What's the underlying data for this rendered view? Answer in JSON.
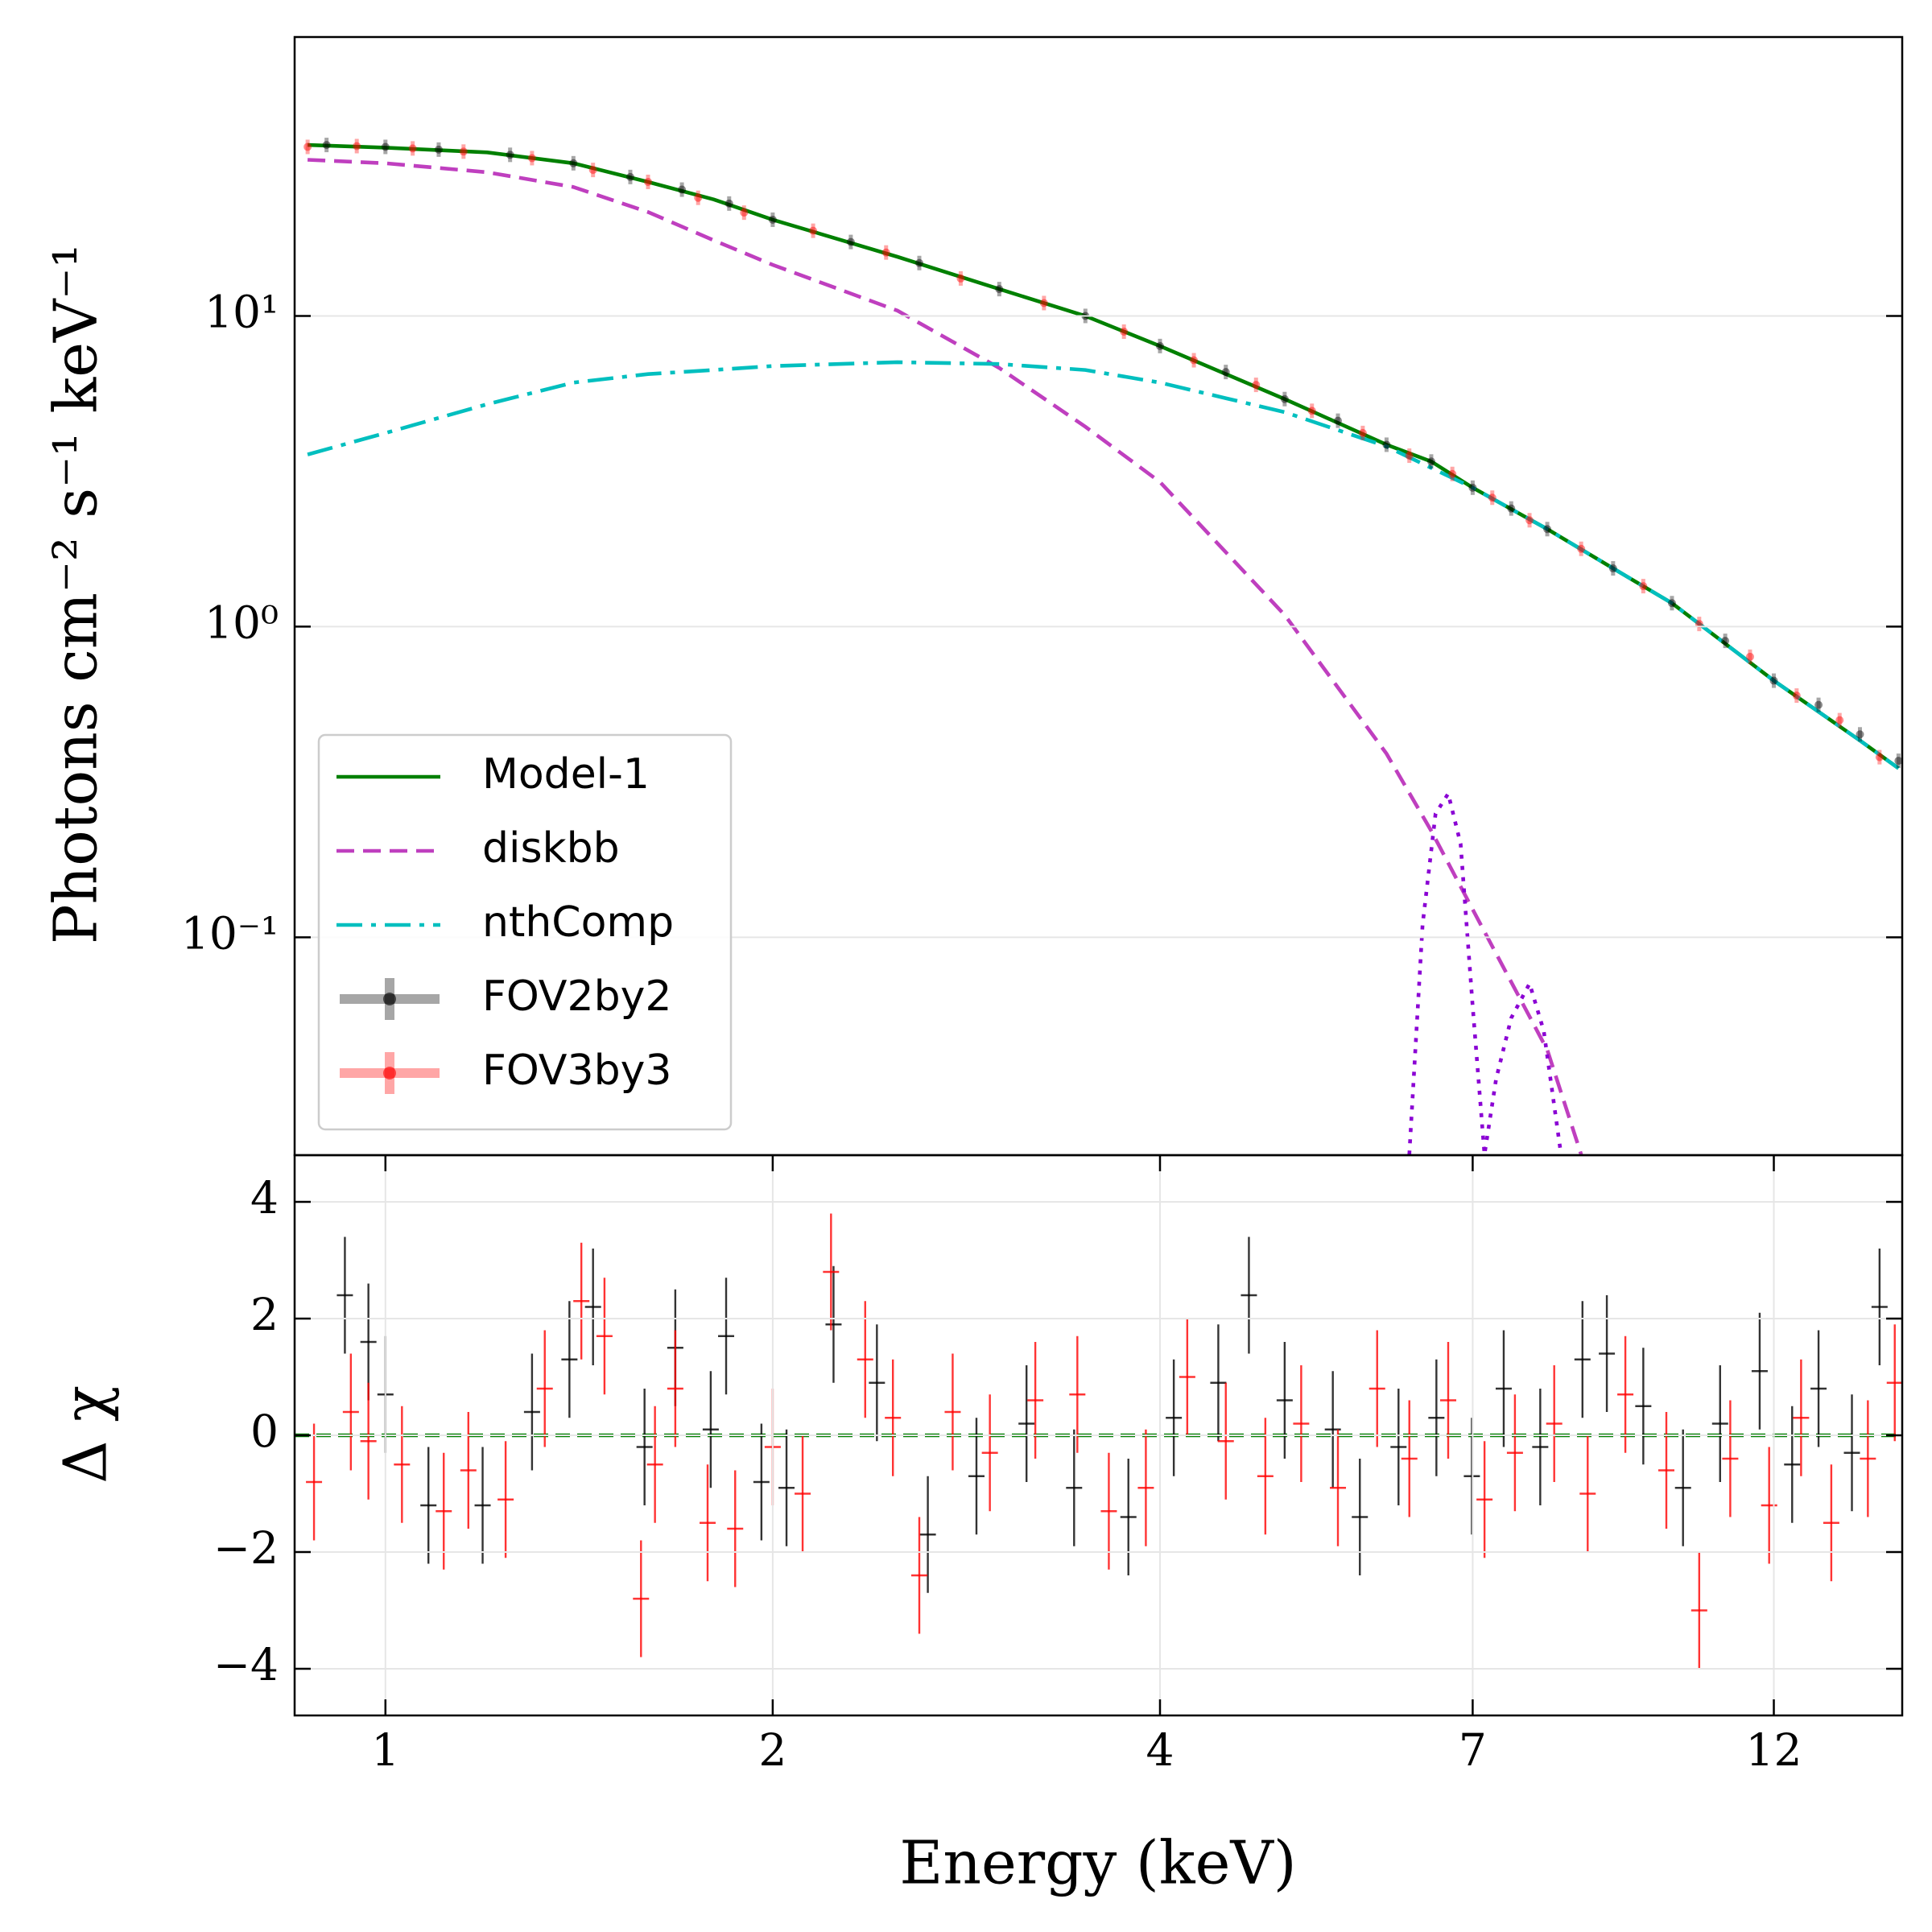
{
  "chart_data": [
    {
      "type": "line",
      "ylabel": "Photons cm⁻² s⁻¹ keV⁻¹",
      "log_x": true,
      "log_y": true,
      "xlim": [
        0.85,
        15.1
      ],
      "ylim": [
        0.0199,
        79
      ],
      "yticks": [
        {
          "value": 10,
          "label": "10¹"
        },
        {
          "value": 1,
          "label": "10⁰"
        },
        {
          "value": 0.1,
          "label": "10⁻¹"
        }
      ],
      "grid": "y",
      "legend": "lower left",
      "series": [
        {
          "name": "Model-1",
          "color": "#008000",
          "style": "solid",
          "x": [
            0.87,
            1,
            1.2,
            1.4,
            1.6,
            1.8,
            2,
            2.5,
            3,
            3.5,
            4,
            5,
            6,
            6.5,
            7,
            8,
            9,
            10,
            12,
            14,
            15
          ],
          "values": [
            35.5,
            34.8,
            33.6,
            31,
            27,
            23.7,
            20.4,
            15.5,
            12.2,
            10,
            8,
            5.4,
            3.85,
            3.4,
            2.8,
            2.06,
            1.54,
            1.19,
            0.67,
            0.43,
            0.35
          ]
        },
        {
          "name": "diskbb",
          "color": "#bf3fbf",
          "style": "dashed",
          "x": [
            0.87,
            1,
            1.2,
            1.4,
            1.6,
            1.8,
            2,
            2.5,
            3,
            3.5,
            4,
            5,
            6,
            6.5,
            7,
            8,
            8.5
          ],
          "values": [
            31.8,
            31,
            29,
            26,
            21.6,
            17.5,
            14.6,
            10.4,
            6.8,
            4.4,
            2.92,
            1.09,
            0.39,
            0.22,
            0.123,
            0.0434,
            0.02
          ]
        },
        {
          "name": "nthComp",
          "color": "#00bfbf",
          "style": "dashdot",
          "x": [
            0.87,
            1,
            1.2,
            1.4,
            1.6,
            1.8,
            2,
            2.5,
            3,
            3.5,
            4,
            5,
            6,
            7,
            8,
            9,
            10,
            12,
            14,
            15
          ],
          "values": [
            3.58,
            4.2,
            5.2,
            6.1,
            6.5,
            6.7,
            6.9,
            7.1,
            7.0,
            6.7,
            6.1,
            4.9,
            3.8,
            2.8,
            2.06,
            1.54,
            1.19,
            0.67,
            0.43,
            0.35
          ]
        },
        {
          "color": "#8a00d4",
          "style": "dotted",
          "x": [
            6.25,
            6.4,
            6.55,
            6.7,
            6.85,
            7.0,
            7.15,
            7.3,
            7.5,
            7.75,
            7.95,
            8.2
          ],
          "values": [
            0.02,
            0.11,
            0.25,
            0.29,
            0.2,
            0.06,
            0.02,
            0.035,
            0.055,
            0.071,
            0.05,
            0.02
          ]
        },
        {
          "name": "FOV2by2",
          "color": "#000000",
          "style": "points",
          "x": [
            0.9,
            1.0,
            1.1,
            1.25,
            1.4,
            1.55,
            1.7,
            1.85,
            2.0,
            2.3,
            2.6,
            3.0,
            3.5,
            4.0,
            4.5,
            5.0,
            5.5,
            6.0,
            6.5,
            7.0,
            7.5,
            8.0,
            9.0,
            10.0,
            11.0,
            12.0,
            13.0,
            14.0,
            15.0
          ],
          "values": [
            35.5,
            35,
            34.3,
            33,
            31,
            28,
            25.5,
            23,
            20.4,
            17.3,
            14.8,
            12.2,
            10,
            8,
            6.6,
            5.4,
            4.6,
            3.85,
            3.4,
            2.8,
            2.4,
            2.06,
            1.54,
            1.19,
            0.9,
            0.67,
            0.56,
            0.45,
            0.37
          ]
        },
        {
          "name": "FOV3by3",
          "color": "#ff0000",
          "style": "points",
          "x": [
            0.87,
            0.95,
            1.05,
            1.15,
            1.3,
            1.45,
            1.6,
            1.75,
            1.9,
            2.15,
            2.45,
            2.8,
            3.25,
            3.75,
            4.25,
            4.75,
            5.25,
            5.75,
            6.25,
            6.75,
            7.25,
            7.75,
            8.5,
            9.5,
            10.5,
            11.5,
            12.5,
            13.5,
            14.5
          ],
          "values": [
            35,
            35.2,
            34.6,
            33.8,
            32.2,
            29.5,
            27,
            24,
            21.5,
            18.8,
            16,
            13.2,
            11,
            8.9,
            7.2,
            6,
            4.95,
            4.2,
            3.55,
            3.1,
            2.6,
            2.2,
            1.78,
            1.35,
            1.02,
            0.8,
            0.6,
            0.5,
            0.38
          ]
        }
      ]
    },
    {
      "type": "errorbar",
      "xlabel": "Energy (keV)",
      "ylabel": "Δ χ",
      "log_x": true,
      "xlim": [
        0.85,
        15.1
      ],
      "ylim": [
        -4.8,
        4.8
      ],
      "xticks": [
        1,
        2,
        4,
        7,
        12
      ],
      "yticks": [
        {
          "value": -4,
          "label": "−4"
        },
        {
          "value": -2,
          "label": "−2"
        },
        0,
        2,
        4
      ],
      "grid": "both",
      "reference_line": {
        "value": 0,
        "color": "#008000"
      },
      "series": [
        {
          "color": "#000000",
          "yerr": 1.0,
          "x": [
            0.93,
            0.97,
            1.0,
            1.08,
            1.19,
            1.3,
            1.39,
            1.45,
            1.59,
            1.68,
            1.79,
            1.84,
            1.96,
            2.05,
            2.23,
            2.41,
            2.64,
            2.88,
            3.15,
            3.43,
            3.78,
            4.1,
            4.44,
            4.69,
            5.0,
            5.45,
            5.72,
            6.13,
            6.56,
            6.99,
            7.4,
            7.9,
            8.52,
            8.9,
            9.5,
            10.2,
            10.9,
            11.7,
            12.4,
            13.0,
            13.8,
            14.5
          ],
          "values": [
            2.4,
            1.6,
            0.7,
            -1.2,
            -1.2,
            0.4,
            1.3,
            2.2,
            -0.2,
            1.5,
            0.1,
            1.7,
            -0.8,
            -0.9,
            1.9,
            0.9,
            -1.7,
            -0.7,
            0.2,
            -0.9,
            -1.4,
            0.3,
            0.9,
            2.4,
            0.6,
            0.1,
            -1.4,
            -0.2,
            0.3,
            -0.7,
            0.8,
            -0.2,
            1.3,
            1.4,
            0.5,
            -0.9,
            0.2,
            1.1,
            -0.5,
            0.8,
            -0.3,
            2.2
          ]
        },
        {
          "color": "#ff0000",
          "yerr": 1.0,
          "x": [
            0.88,
            0.94,
            0.97,
            1.03,
            1.11,
            1.16,
            1.24,
            1.33,
            1.42,
            1.48,
            1.58,
            1.62,
            1.68,
            1.78,
            1.87,
            2.0,
            2.11,
            2.22,
            2.36,
            2.48,
            2.6,
            2.76,
            2.95,
            3.2,
            3.45,
            3.65,
            3.9,
            4.2,
            4.5,
            4.83,
            5.15,
            5.5,
            5.9,
            6.25,
            6.7,
            7.15,
            7.55,
            8.1,
            8.6,
            9.2,
            9.9,
            10.5,
            11.1,
            11.9,
            12.6,
            13.3,
            14.2,
            14.9
          ],
          "values": [
            -0.8,
            0.4,
            -0.1,
            -0.5,
            -1.3,
            -0.6,
            -1.1,
            0.8,
            2.3,
            1.7,
            -2.8,
            -0.5,
            0.8,
            -1.5,
            -1.6,
            -0.2,
            -1.0,
            2.8,
            1.3,
            0.3,
            -2.4,
            0.4,
            -0.3,
            0.6,
            0.7,
            -1.3,
            -0.9,
            1.0,
            -0.1,
            -0.7,
            0.2,
            -0.9,
            0.8,
            -0.4,
            0.6,
            -1.1,
            -0.3,
            0.2,
            -1.0,
            0.7,
            -0.6,
            -3.0,
            -0.4,
            -1.2,
            0.3,
            -1.5,
            -0.4,
            0.9
          ]
        }
      ]
    }
  ]
}
